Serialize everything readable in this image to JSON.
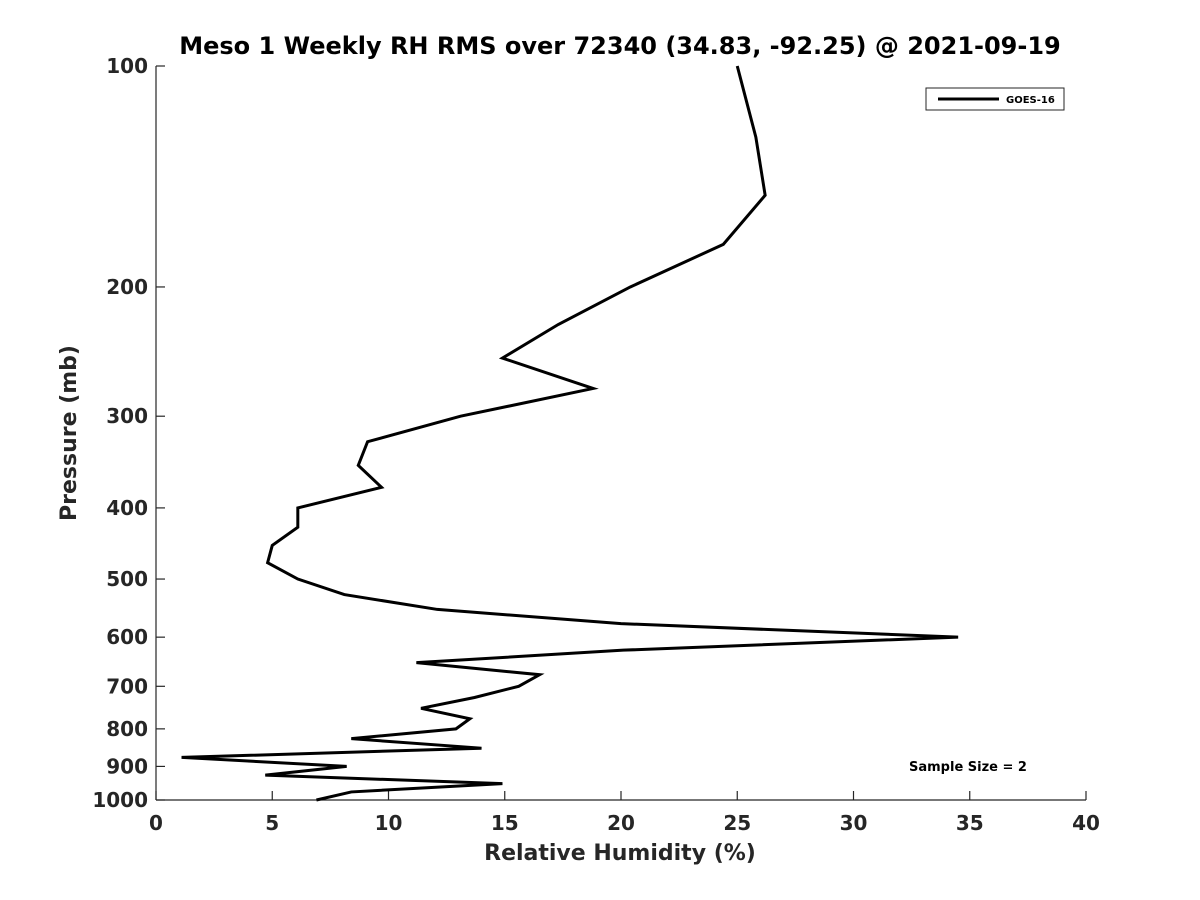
{
  "chart_data": {
    "type": "line",
    "title": "Meso 1 Weekly RH RMS over 72340 (34.83, -92.25) @ 2021-09-19",
    "xlabel": "Relative Humidity (%)",
    "ylabel": "Pressure (mb)",
    "xlim": [
      0,
      40
    ],
    "ylim": [
      100,
      1000
    ],
    "y_scale": "log",
    "y_reversed": true,
    "x_ticks": [
      0,
      5,
      10,
      15,
      20,
      25,
      30,
      35,
      40
    ],
    "y_ticks": [
      100,
      200,
      300,
      400,
      500,
      600,
      700,
      800,
      900,
      1000
    ],
    "legend": {
      "position": "top-right",
      "entries": [
        "GOES-16"
      ]
    },
    "annotation": "Sample Size = 2",
    "series": [
      {
        "name": "GOES-16",
        "color": "#000000",
        "points": [
          {
            "x": 25.0,
            "y": 100
          },
          {
            "x": 25.8,
            "y": 125
          },
          {
            "x": 26.2,
            "y": 150
          },
          {
            "x": 24.4,
            "y": 175
          },
          {
            "x": 20.4,
            "y": 200
          },
          {
            "x": 17.3,
            "y": 225
          },
          {
            "x": 14.9,
            "y": 250
          },
          {
            "x": 18.8,
            "y": 275
          },
          {
            "x": 13.1,
            "y": 300
          },
          {
            "x": 9.1,
            "y": 325
          },
          {
            "x": 8.7,
            "y": 350
          },
          {
            "x": 9.7,
            "y": 375
          },
          {
            "x": 6.1,
            "y": 400
          },
          {
            "x": 6.1,
            "y": 425
          },
          {
            "x": 5.0,
            "y": 450
          },
          {
            "x": 4.8,
            "y": 475
          },
          {
            "x": 6.1,
            "y": 500
          },
          {
            "x": 8.1,
            "y": 525
          },
          {
            "x": 12.1,
            "y": 550
          },
          {
            "x": 20.0,
            "y": 575
          },
          {
            "x": 34.5,
            "y": 600
          },
          {
            "x": 20.1,
            "y": 625
          },
          {
            "x": 11.2,
            "y": 650
          },
          {
            "x": 16.5,
            "y": 675
          },
          {
            "x": 15.6,
            "y": 700
          },
          {
            "x": 13.7,
            "y": 725
          },
          {
            "x": 11.4,
            "y": 750
          },
          {
            "x": 13.5,
            "y": 775
          },
          {
            "x": 12.9,
            "y": 800
          },
          {
            "x": 8.4,
            "y": 825
          },
          {
            "x": 14.0,
            "y": 850
          },
          {
            "x": 1.1,
            "y": 875
          },
          {
            "x": 8.2,
            "y": 900
          },
          {
            "x": 4.7,
            "y": 925
          },
          {
            "x": 14.9,
            "y": 950
          },
          {
            "x": 8.4,
            "y": 975
          },
          {
            "x": 6.9,
            "y": 1000
          }
        ]
      }
    ]
  }
}
